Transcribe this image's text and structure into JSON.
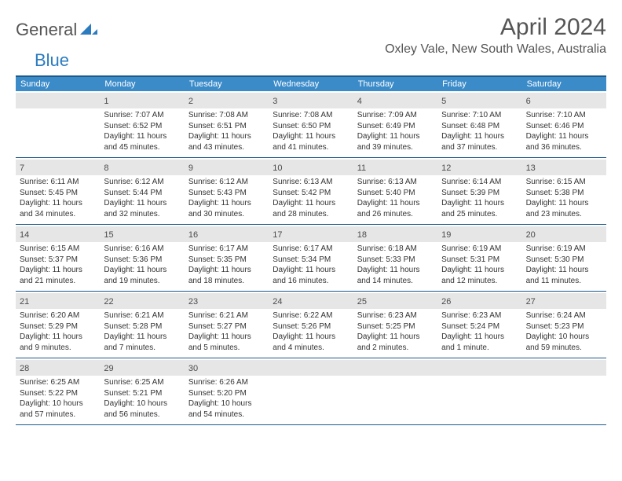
{
  "brand": {
    "part1": "General",
    "part2": "Blue"
  },
  "title": "April 2024",
  "location": "Oxley Vale, New South Wales, Australia",
  "colors": {
    "header_bar": "#3b8bc9",
    "border": "#1d5a8c",
    "daynum_bg": "#e6e6e6",
    "text": "#333333",
    "muted": "#555555"
  },
  "weekdays": [
    "Sunday",
    "Monday",
    "Tuesday",
    "Wednesday",
    "Thursday",
    "Friday",
    "Saturday"
  ],
  "weeks": [
    [
      null,
      {
        "n": "1",
        "sr": "Sunrise: 7:07 AM",
        "ss": "Sunset: 6:52 PM",
        "d1": "Daylight: 11 hours",
        "d2": "and 45 minutes."
      },
      {
        "n": "2",
        "sr": "Sunrise: 7:08 AM",
        "ss": "Sunset: 6:51 PM",
        "d1": "Daylight: 11 hours",
        "d2": "and 43 minutes."
      },
      {
        "n": "3",
        "sr": "Sunrise: 7:08 AM",
        "ss": "Sunset: 6:50 PM",
        "d1": "Daylight: 11 hours",
        "d2": "and 41 minutes."
      },
      {
        "n": "4",
        "sr": "Sunrise: 7:09 AM",
        "ss": "Sunset: 6:49 PM",
        "d1": "Daylight: 11 hours",
        "d2": "and 39 minutes."
      },
      {
        "n": "5",
        "sr": "Sunrise: 7:10 AM",
        "ss": "Sunset: 6:48 PM",
        "d1": "Daylight: 11 hours",
        "d2": "and 37 minutes."
      },
      {
        "n": "6",
        "sr": "Sunrise: 7:10 AM",
        "ss": "Sunset: 6:46 PM",
        "d1": "Daylight: 11 hours",
        "d2": "and 36 minutes."
      }
    ],
    [
      {
        "n": "7",
        "sr": "Sunrise: 6:11 AM",
        "ss": "Sunset: 5:45 PM",
        "d1": "Daylight: 11 hours",
        "d2": "and 34 minutes."
      },
      {
        "n": "8",
        "sr": "Sunrise: 6:12 AM",
        "ss": "Sunset: 5:44 PM",
        "d1": "Daylight: 11 hours",
        "d2": "and 32 minutes."
      },
      {
        "n": "9",
        "sr": "Sunrise: 6:12 AM",
        "ss": "Sunset: 5:43 PM",
        "d1": "Daylight: 11 hours",
        "d2": "and 30 minutes."
      },
      {
        "n": "10",
        "sr": "Sunrise: 6:13 AM",
        "ss": "Sunset: 5:42 PM",
        "d1": "Daylight: 11 hours",
        "d2": "and 28 minutes."
      },
      {
        "n": "11",
        "sr": "Sunrise: 6:13 AM",
        "ss": "Sunset: 5:40 PM",
        "d1": "Daylight: 11 hours",
        "d2": "and 26 minutes."
      },
      {
        "n": "12",
        "sr": "Sunrise: 6:14 AM",
        "ss": "Sunset: 5:39 PM",
        "d1": "Daylight: 11 hours",
        "d2": "and 25 minutes."
      },
      {
        "n": "13",
        "sr": "Sunrise: 6:15 AM",
        "ss": "Sunset: 5:38 PM",
        "d1": "Daylight: 11 hours",
        "d2": "and 23 minutes."
      }
    ],
    [
      {
        "n": "14",
        "sr": "Sunrise: 6:15 AM",
        "ss": "Sunset: 5:37 PM",
        "d1": "Daylight: 11 hours",
        "d2": "and 21 minutes."
      },
      {
        "n": "15",
        "sr": "Sunrise: 6:16 AM",
        "ss": "Sunset: 5:36 PM",
        "d1": "Daylight: 11 hours",
        "d2": "and 19 minutes."
      },
      {
        "n": "16",
        "sr": "Sunrise: 6:17 AM",
        "ss": "Sunset: 5:35 PM",
        "d1": "Daylight: 11 hours",
        "d2": "and 18 minutes."
      },
      {
        "n": "17",
        "sr": "Sunrise: 6:17 AM",
        "ss": "Sunset: 5:34 PM",
        "d1": "Daylight: 11 hours",
        "d2": "and 16 minutes."
      },
      {
        "n": "18",
        "sr": "Sunrise: 6:18 AM",
        "ss": "Sunset: 5:33 PM",
        "d1": "Daylight: 11 hours",
        "d2": "and 14 minutes."
      },
      {
        "n": "19",
        "sr": "Sunrise: 6:19 AM",
        "ss": "Sunset: 5:31 PM",
        "d1": "Daylight: 11 hours",
        "d2": "and 12 minutes."
      },
      {
        "n": "20",
        "sr": "Sunrise: 6:19 AM",
        "ss": "Sunset: 5:30 PM",
        "d1": "Daylight: 11 hours",
        "d2": "and 11 minutes."
      }
    ],
    [
      {
        "n": "21",
        "sr": "Sunrise: 6:20 AM",
        "ss": "Sunset: 5:29 PM",
        "d1": "Daylight: 11 hours",
        "d2": "and 9 minutes."
      },
      {
        "n": "22",
        "sr": "Sunrise: 6:21 AM",
        "ss": "Sunset: 5:28 PM",
        "d1": "Daylight: 11 hours",
        "d2": "and 7 minutes."
      },
      {
        "n": "23",
        "sr": "Sunrise: 6:21 AM",
        "ss": "Sunset: 5:27 PM",
        "d1": "Daylight: 11 hours",
        "d2": "and 5 minutes."
      },
      {
        "n": "24",
        "sr": "Sunrise: 6:22 AM",
        "ss": "Sunset: 5:26 PM",
        "d1": "Daylight: 11 hours",
        "d2": "and 4 minutes."
      },
      {
        "n": "25",
        "sr": "Sunrise: 6:23 AM",
        "ss": "Sunset: 5:25 PM",
        "d1": "Daylight: 11 hours",
        "d2": "and 2 minutes."
      },
      {
        "n": "26",
        "sr": "Sunrise: 6:23 AM",
        "ss": "Sunset: 5:24 PM",
        "d1": "Daylight: 11 hours",
        "d2": "and 1 minute."
      },
      {
        "n": "27",
        "sr": "Sunrise: 6:24 AM",
        "ss": "Sunset: 5:23 PM",
        "d1": "Daylight: 10 hours",
        "d2": "and 59 minutes."
      }
    ],
    [
      {
        "n": "28",
        "sr": "Sunrise: 6:25 AM",
        "ss": "Sunset: 5:22 PM",
        "d1": "Daylight: 10 hours",
        "d2": "and 57 minutes."
      },
      {
        "n": "29",
        "sr": "Sunrise: 6:25 AM",
        "ss": "Sunset: 5:21 PM",
        "d1": "Daylight: 10 hours",
        "d2": "and 56 minutes."
      },
      {
        "n": "30",
        "sr": "Sunrise: 6:26 AM",
        "ss": "Sunset: 5:20 PM",
        "d1": "Daylight: 10 hours",
        "d2": "and 54 minutes."
      },
      null,
      null,
      null,
      null
    ]
  ]
}
